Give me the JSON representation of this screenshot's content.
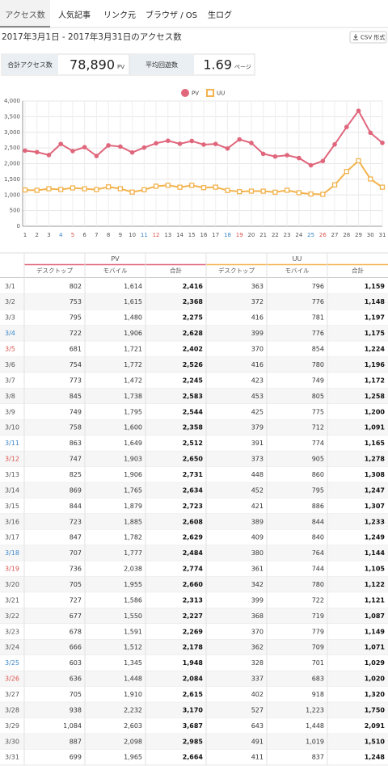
{
  "tabs": [
    "アクセス数",
    "人気記事",
    "リンク元",
    "ブラウザ / OS",
    "生ログ"
  ],
  "heading": "2017年3月1日 - 2017年3月31日のアクセス数",
  "csv_button": "CSV 形式",
  "summary": {
    "total_label": "合計アクセス数",
    "total_value": "78,890",
    "total_unit": "PV",
    "average_label": "平均回遊数",
    "average_value": "1.69",
    "average_unit": "ページ"
  },
  "chart_data": {
    "type": "line",
    "categories": [
      "1",
      "2",
      "3",
      "4",
      "5",
      "6",
      "7",
      "8",
      "9",
      "10",
      "11",
      "12",
      "13",
      "14",
      "15",
      "16",
      "17",
      "18",
      "19",
      "20",
      "21",
      "22",
      "23",
      "24",
      "25",
      "26",
      "27",
      "28",
      "29",
      "30",
      "31"
    ],
    "category_colors": [
      "#555",
      "#555",
      "#555",
      "#3a86c8",
      "#d9534f",
      "#555",
      "#555",
      "#555",
      "#555",
      "#555",
      "#3a86c8",
      "#d9534f",
      "#555",
      "#555",
      "#555",
      "#555",
      "#555",
      "#3a86c8",
      "#d9534f",
      "#555",
      "#555",
      "#555",
      "#555",
      "#555",
      "#3a86c8",
      "#d9534f",
      "#555",
      "#555",
      "#555",
      "#555",
      "#555"
    ],
    "series": [
      {
        "name": "PV",
        "color": "#e0667c",
        "marker": "circle",
        "values": [
          2416,
          2368,
          2275,
          2628,
          2402,
          2526,
          2245,
          2583,
          2544,
          2358,
          2512,
          2650,
          2731,
          2634,
          2723,
          2608,
          2629,
          2484,
          2774,
          2660,
          2313,
          2227,
          2269,
          2178,
          1948,
          2084,
          2615,
          3170,
          3687,
          2985,
          2664
        ]
      },
      {
        "name": "UU",
        "color": "#f2b34e",
        "marker": "square",
        "values": [
          1159,
          1148,
          1197,
          1175,
          1224,
          1196,
          1172,
          1258,
          1200,
          1091,
          1165,
          1278,
          1308,
          1247,
          1307,
          1233,
          1249,
          1144,
          1105,
          1122,
          1121,
          1087,
          1149,
          1071,
          1029,
          1020,
          1320,
          1750,
          2091,
          1510,
          1248
        ]
      }
    ],
    "ylim": [
      0,
      4000
    ],
    "yticks": [
      0,
      500,
      {
        "value": 1000,
        "label": "1,000"
      },
      {
        "value": 1500,
        "label": "1,500"
      },
      {
        "value": 2000,
        "label": "2,000"
      },
      {
        "value": 2500,
        "label": "2,500"
      },
      {
        "value": 3000,
        "label": "3,000"
      },
      {
        "value": 3500,
        "label": "3,500"
      },
      {
        "value": 4000,
        "label": "4,000"
      }
    ],
    "grid": true,
    "legend": "top"
  },
  "table": {
    "groups": [
      "PV",
      "UU"
    ],
    "columns": [
      "デスクトップ",
      "モバイル",
      "合計"
    ],
    "rows": [
      [
        "3/1",
        "802",
        "1,614",
        "2,416",
        "363",
        "796",
        "1,159"
      ],
      [
        "3/2",
        "753",
        "1,615",
        "2,368",
        "372",
        "776",
        "1,148"
      ],
      [
        "3/3",
        "795",
        "1,480",
        "2,275",
        "416",
        "781",
        "1,197"
      ],
      [
        "3/4",
        "722",
        "1,906",
        "2,628",
        "399",
        "776",
        "1,175"
      ],
      [
        "3/5",
        "681",
        "1,721",
        "2,402",
        "370",
        "854",
        "1,224"
      ],
      [
        "3/6",
        "754",
        "1,772",
        "2,526",
        "416",
        "780",
        "1,196"
      ],
      [
        "3/7",
        "773",
        "1,472",
        "2,245",
        "423",
        "749",
        "1,172"
      ],
      [
        "3/8",
        "845",
        "1,738",
        "2,583",
        "453",
        "805",
        "1,258"
      ],
      [
        "3/9",
        "749",
        "1,795",
        "2,544",
        "425",
        "775",
        "1,200"
      ],
      [
        "3/10",
        "758",
        "1,600",
        "2,358",
        "379",
        "712",
        "1,091"
      ],
      [
        "3/11",
        "863",
        "1,649",
        "2,512",
        "391",
        "774",
        "1,165"
      ],
      [
        "3/12",
        "747",
        "1,903",
        "2,650",
        "373",
        "905",
        "1,278"
      ],
      [
        "3/13",
        "825",
        "1,906",
        "2,731",
        "448",
        "860",
        "1,308"
      ],
      [
        "3/14",
        "869",
        "1,765",
        "2,634",
        "452",
        "795",
        "1,247"
      ],
      [
        "3/15",
        "844",
        "1,879",
        "2,723",
        "421",
        "886",
        "1,307"
      ],
      [
        "3/16",
        "723",
        "1,885",
        "2,608",
        "389",
        "844",
        "1,233"
      ],
      [
        "3/17",
        "847",
        "1,782",
        "2,629",
        "409",
        "840",
        "1,249"
      ],
      [
        "3/18",
        "707",
        "1,777",
        "2,484",
        "380",
        "764",
        "1,144"
      ],
      [
        "3/19",
        "736",
        "2,038",
        "2,774",
        "361",
        "744",
        "1,105"
      ],
      [
        "3/20",
        "705",
        "1,955",
        "2,660",
        "342",
        "780",
        "1,122"
      ],
      [
        "3/21",
        "727",
        "1,586",
        "2,313",
        "399",
        "722",
        "1,121"
      ],
      [
        "3/22",
        "677",
        "1,550",
        "2,227",
        "368",
        "719",
        "1,087"
      ],
      [
        "3/23",
        "678",
        "1,591",
        "2,269",
        "370",
        "779",
        "1,149"
      ],
      [
        "3/24",
        "666",
        "1,512",
        "2,178",
        "362",
        "709",
        "1,071"
      ],
      [
        "3/25",
        "603",
        "1,345",
        "1,948",
        "328",
        "701",
        "1,029"
      ],
      [
        "3/26",
        "636",
        "1,448",
        "2,084",
        "337",
        "683",
        "1,020"
      ],
      [
        "3/27",
        "705",
        "1,910",
        "2,615",
        "402",
        "918",
        "1,320"
      ],
      [
        "3/28",
        "938",
        "2,232",
        "3,170",
        "527",
        "1,223",
        "1,750"
      ],
      [
        "3/29",
        "1,084",
        "2,603",
        "3,687",
        "643",
        "1,448",
        "2,091"
      ],
      [
        "3/30",
        "887",
        "2,098",
        "2,985",
        "491",
        "1,019",
        "1,510"
      ],
      [
        "3/31",
        "699",
        "1,965",
        "2,664",
        "411",
        "837",
        "1,248"
      ]
    ]
  }
}
